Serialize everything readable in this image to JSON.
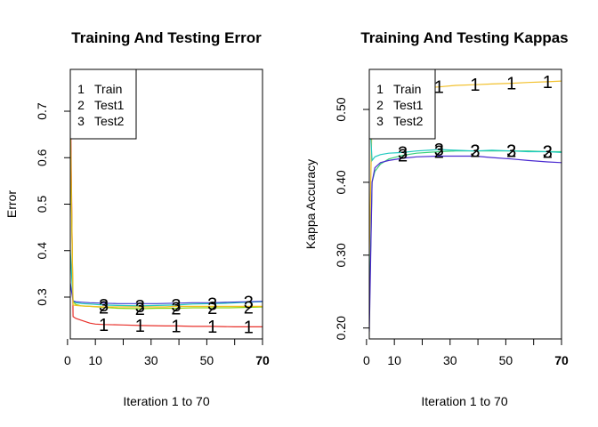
{
  "chart_data": [
    {
      "type": "line",
      "title": "Training And Testing Error",
      "xlabel": "Iteration 1 to 70",
      "ylabel": "Error",
      "xlim": [
        1,
        70
      ],
      "ylim": [
        0.21,
        0.79
      ],
      "xticks": [
        0,
        10,
        30,
        50,
        70
      ],
      "xtick_labels": [
        "0",
        "10",
        "30",
        "50",
        "70"
      ],
      "xtick_bold_last": true,
      "yticks": [
        0.3,
        0.4,
        0.5,
        0.6,
        0.7
      ],
      "ytick_labels": [
        "0.3",
        "0.4",
        "0.5",
        "0.6",
        "0.7"
      ],
      "legend": {
        "position": "top-left",
        "entries": [
          {
            "symbol": "1",
            "label": "Train"
          },
          {
            "symbol": "2",
            "label": "Test1"
          },
          {
            "symbol": "3",
            "label": "Test2"
          }
        ]
      },
      "marker_iterations": [
        13,
        26,
        39,
        52,
        65
      ],
      "series": [
        {
          "name": "Train",
          "symbol": "1",
          "color": "#e8302a",
          "x": [
            1,
            2,
            3,
            5,
            8,
            10,
            13,
            20,
            26,
            35,
            39,
            45,
            52,
            60,
            65,
            70
          ],
          "y": [
            0.75,
            0.258,
            0.254,
            0.25,
            0.244,
            0.242,
            0.241,
            0.24,
            0.239,
            0.238,
            0.238,
            0.237,
            0.237,
            0.236,
            0.236,
            0.236
          ]
        },
        {
          "name": "Test1",
          "symbol": "2",
          "color": "#8bd40f",
          "x": [
            1,
            2,
            3,
            5,
            8,
            13,
            18,
            26,
            32,
            39,
            45,
            52,
            58,
            65,
            70
          ],
          "y": [
            0.66,
            0.29,
            0.284,
            0.281,
            0.28,
            0.278,
            0.276,
            0.275,
            0.276,
            0.276,
            0.277,
            0.277,
            0.277,
            0.278,
            0.279
          ]
        },
        {
          "name": "Test2",
          "symbol": "3",
          "color": "#20c9b8",
          "x": [
            1,
            2,
            3,
            5,
            8,
            13,
            18,
            26,
            32,
            39,
            45,
            52,
            58,
            65,
            70
          ],
          "y": [
            0.4,
            0.292,
            0.288,
            0.286,
            0.285,
            0.283,
            0.282,
            0.281,
            0.282,
            0.283,
            0.285,
            0.286,
            0.287,
            0.289,
            0.29
          ]
        },
        {
          "name": "",
          "symbol": "",
          "color": "#3a3ad0",
          "x": [
            1,
            2,
            3,
            5,
            8,
            13,
            18,
            26,
            32,
            39,
            45,
            52,
            58,
            65,
            70
          ],
          "y": [
            0.33,
            0.292,
            0.29,
            0.289,
            0.288,
            0.287,
            0.286,
            0.286,
            0.286,
            0.287,
            0.288,
            0.288,
            0.289,
            0.29,
            0.291
          ]
        },
        {
          "name": "",
          "symbol": "",
          "color": "#f0c020",
          "x": [
            1,
            2,
            3,
            5,
            8,
            13,
            20,
            26,
            35,
            39,
            45,
            52,
            60,
            65,
            70
          ],
          "y": [
            0.69,
            0.283,
            0.282,
            0.281,
            0.28,
            0.279,
            0.279,
            0.279,
            0.279,
            0.28,
            0.28,
            0.28,
            0.28,
            0.28,
            0.28
          ]
        }
      ]
    },
    {
      "type": "line",
      "title": "Training And Testing Kappas",
      "xlabel": "Iteration 1 to 70",
      "ylabel": "Kappa Accuracy",
      "xlim": [
        1,
        70
      ],
      "ylim": [
        0.185,
        0.555
      ],
      "xticks": [
        0,
        10,
        30,
        50,
        70
      ],
      "xtick_labels": [
        "0",
        "10",
        "30",
        "50",
        "70"
      ],
      "xtick_bold_last": true,
      "yticks": [
        0.2,
        0.3,
        0.4,
        0.5
      ],
      "ytick_labels": [
        "0.20",
        "0.30",
        "0.40",
        "0.50"
      ],
      "legend": {
        "position": "top-left",
        "entries": [
          {
            "symbol": "1",
            "label": "Train"
          },
          {
            "symbol": "2",
            "label": "Test1"
          },
          {
            "symbol": "3",
            "label": "Test2"
          }
        ]
      },
      "marker_iterations": [
        13,
        26,
        39,
        52,
        65
      ],
      "series": [
        {
          "name": "Train",
          "symbol": "1",
          "color": "#f2c12e",
          "x": [
            1,
            2,
            3,
            5,
            8,
            10,
            13,
            18,
            26,
            32,
            39,
            45,
            52,
            58,
            65,
            70
          ],
          "y": [
            0.3,
            0.49,
            0.5,
            0.512,
            0.52,
            0.524,
            0.527,
            0.529,
            0.531,
            0.533,
            0.534,
            0.535,
            0.536,
            0.537,
            0.538,
            0.539
          ]
        },
        {
          "name": "Test1",
          "symbol": "2",
          "color": "#39d07a",
          "x": [
            1,
            2,
            3,
            5,
            8,
            13,
            18,
            26,
            32,
            39,
            45,
            52,
            58,
            65,
            70
          ],
          "y": [
            0.22,
            0.4,
            0.415,
            0.425,
            0.432,
            0.437,
            0.44,
            0.442,
            0.443,
            0.443,
            0.443,
            0.443,
            0.443,
            0.442,
            0.442
          ]
        },
        {
          "name": "Test2",
          "symbol": "3",
          "color": "#1fc9c0",
          "x": [
            1,
            2,
            3,
            5,
            8,
            13,
            18,
            26,
            32,
            39,
            45,
            52,
            58,
            65,
            70
          ],
          "y": [
            0.5,
            0.43,
            0.435,
            0.438,
            0.44,
            0.441,
            0.443,
            0.445,
            0.444,
            0.443,
            0.444,
            0.443,
            0.442,
            0.442,
            0.441
          ]
        },
        {
          "name": "",
          "symbol": "",
          "color": "#4a2ad0",
          "x": [
            1,
            2,
            3,
            5,
            8,
            13,
            18,
            26,
            32,
            39,
            45,
            52,
            58,
            65,
            70
          ],
          "y": [
            0.195,
            0.4,
            0.42,
            0.427,
            0.43,
            0.433,
            0.435,
            0.436,
            0.436,
            0.436,
            0.434,
            0.432,
            0.43,
            0.428,
            0.427
          ]
        }
      ]
    }
  ]
}
